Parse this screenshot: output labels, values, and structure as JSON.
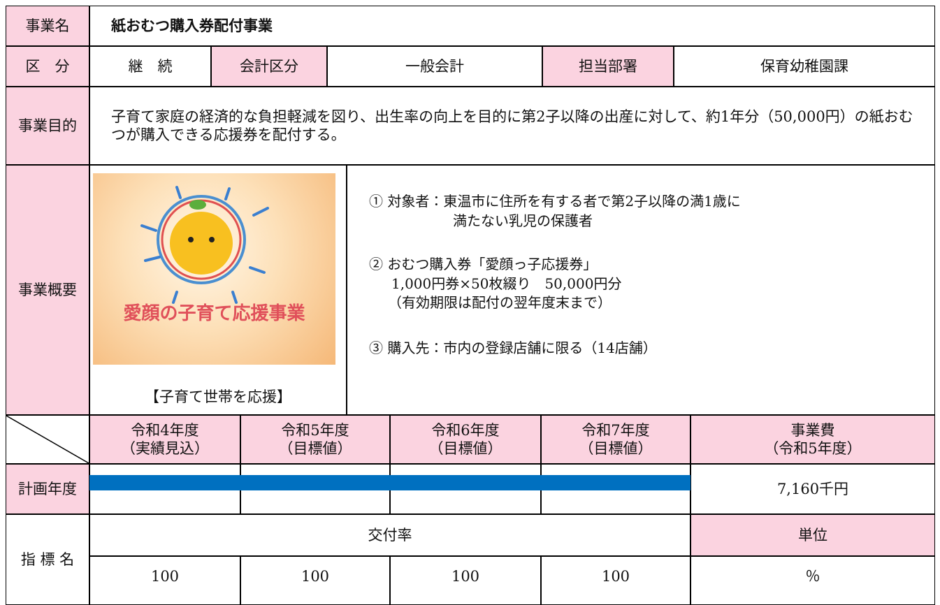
{
  "header": {
    "name_label": "事業名",
    "name": "紙おむつ購入券配付事業"
  },
  "category_row": {
    "label": "区　分",
    "status": "継　続",
    "account_label": "会計区分",
    "account": "一般会計",
    "department_label": "担当部署",
    "department": "保育幼稚園課"
  },
  "purpose": {
    "label": "事業目的",
    "text": "子育て家庭の経済的な負担軽減を図り、出生率の向上を目的に第2子以降の出産に対して、約1年分（50,000円）の紙おむつが購入できる応援券を配付する。"
  },
  "overview": {
    "label": "事業概要",
    "image_title": "愛顔の子育て応援事業",
    "caption": "【子育て世帯を応援】",
    "items": [
      [
        "① 対象者：東温市に住所を有する者で第2子以降の満1歳に",
        "満たない乳児の保護者"
      ],
      [
        "② おむつ購入券「愛顔っ子応援券」",
        "1,000円券×50枚綴り　50,000円分",
        "（有効期限は配付の翌年度末まで）"
      ],
      [
        "③ 購入先：市内の登録店舗に限る（14店舗）"
      ]
    ]
  },
  "schedule": {
    "years": [
      [
        "令和4年度",
        "（実績見込）"
      ],
      [
        "令和5年度",
        "（目標値）"
      ],
      [
        "令和6年度",
        "（目標値）"
      ],
      [
        "令和7年度",
        "（目標値）"
      ]
    ],
    "cost_header": [
      "事業費",
      "（令和5年度）"
    ],
    "plan_label": "計画年度",
    "cost": "7,160千円"
  },
  "indicator": {
    "label": "指 標 名",
    "name": "交付率",
    "unit_label": "単位",
    "values": [
      100,
      100,
      100,
      100
    ],
    "unit": "％"
  }
}
